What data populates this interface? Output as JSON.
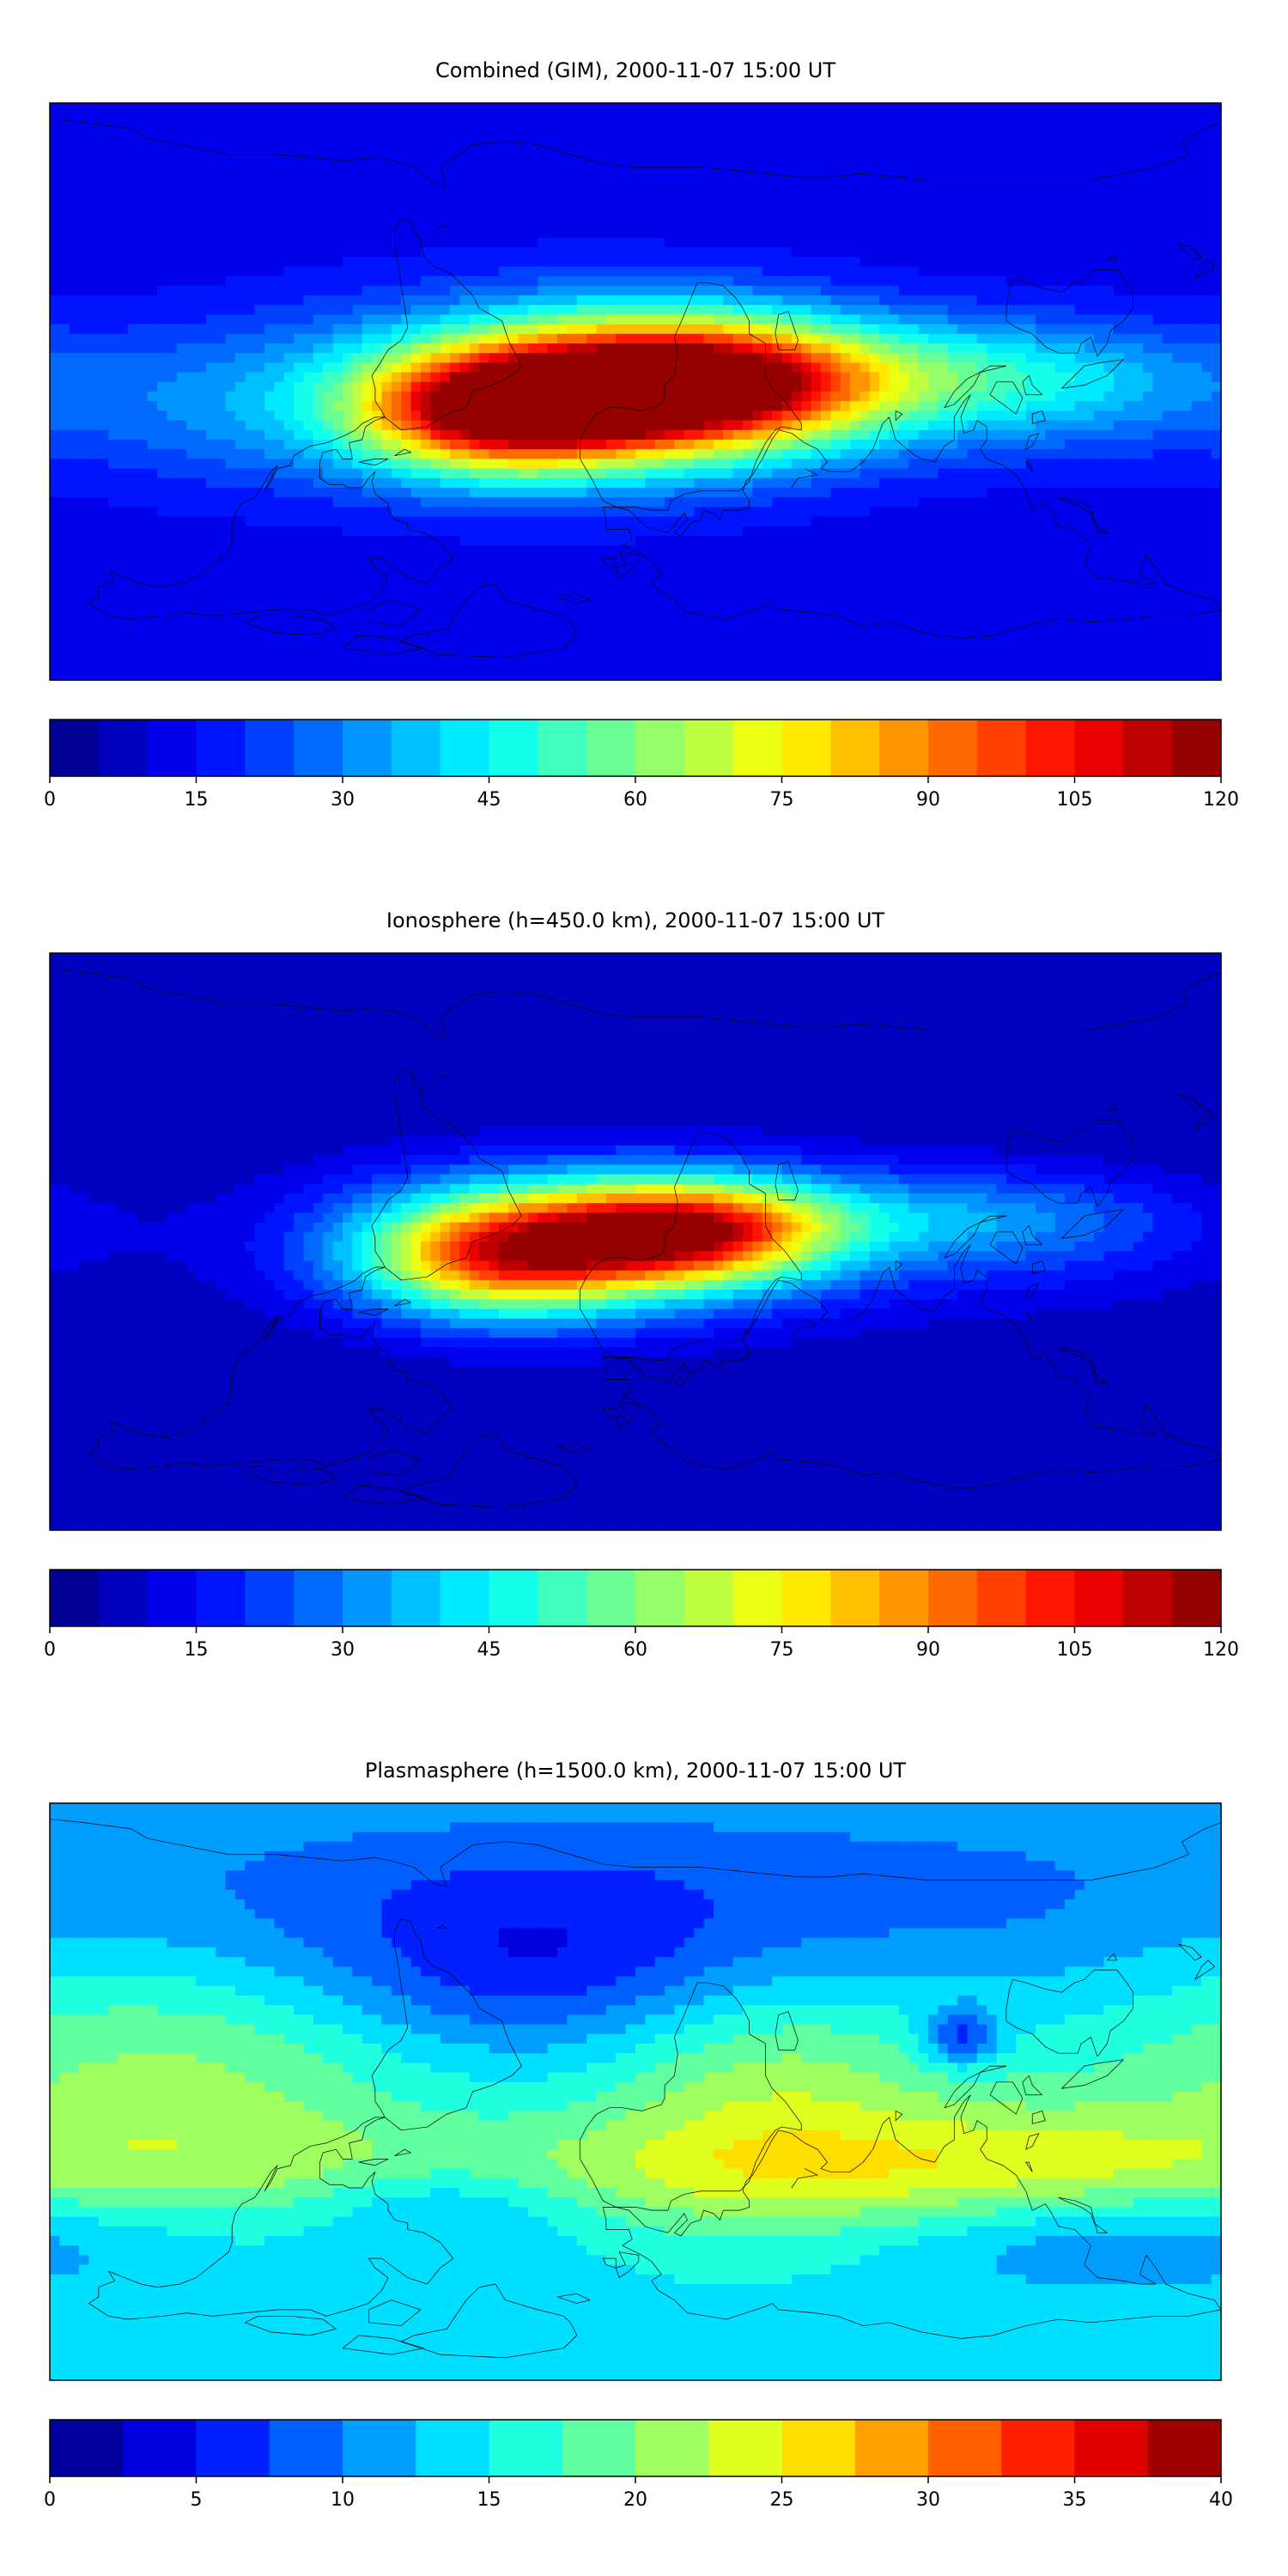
{
  "figure": {
    "panels": [
      {
        "title": "Combined (GIM), 2000-11-07 15:00 UT",
        "colorbar": {
          "min": 0,
          "max": 120,
          "levels": 24,
          "tick_labels": [
            "0",
            "15",
            "30",
            "45",
            "60",
            "75",
            "90",
            "105",
            "120"
          ]
        }
      },
      {
        "title": "Ionosphere  (h=450.0 km), 2000-11-07 15:00 UT",
        "colorbar": {
          "min": 0,
          "max": 120,
          "levels": 24,
          "tick_labels": [
            "0",
            "15",
            "30",
            "45",
            "60",
            "75",
            "90",
            "105",
            "120"
          ]
        }
      },
      {
        "title": "Plasmasphere (h=1500.0 km), 2000-11-07 15:00 UT",
        "colorbar": {
          "min": 0,
          "max": 40,
          "levels": 16,
          "tick_labels": [
            "0",
            "5",
            "10",
            "15",
            "20",
            "25",
            "30",
            "35",
            "40"
          ]
        }
      }
    ]
  },
  "chart_data": [
    {
      "type": "heatmap",
      "title": "Combined (GIM), 2000-11-07 15:00 UT",
      "map": "world coastlines, equirectangular, longitude -180 to 180, latitude -90 to 90",
      "xlim": [
        -180,
        180
      ],
      "ylim": [
        -90,
        90
      ],
      "colormap": "jet",
      "color_range": [
        0,
        120
      ],
      "color_step": 5,
      "background_level": 12,
      "features": [
        {
          "lon": 15,
          "lat": 2,
          "lon_width": 38,
          "lat_width": 14,
          "value": 95
        },
        {
          "lon": -42,
          "lat": -6,
          "lon_width": 30,
          "lat_width": 13,
          "value": 78
        },
        {
          "lon": -20,
          "lat": 0,
          "lon_width": 60,
          "lat_width": 20,
          "value": 40
        },
        {
          "lon": 85,
          "lat": 5,
          "lon_width": 55,
          "lat_width": 12,
          "value": 25
        },
        {
          "lon": 130,
          "lat": 0,
          "lon_width": 40,
          "lat_width": 15,
          "value": 14
        },
        {
          "lon": -130,
          "lat": -5,
          "lon_width": 40,
          "lat_width": 18,
          "value": 12
        }
      ]
    },
    {
      "type": "heatmap",
      "title": "Ionosphere  (h=450.0 km), 2000-11-07 15:00 UT",
      "map": "world coastlines, equirectangular, longitude -180 to 180, latitude -90 to 90",
      "xlim": [
        -180,
        180
      ],
      "ylim": [
        -90,
        90
      ],
      "colormap": "jet",
      "color_range": [
        0,
        120
      ],
      "color_step": 5,
      "background_level": 5,
      "features": [
        {
          "lon": 15,
          "lat": 3,
          "lon_width": 30,
          "lat_width": 11,
          "value": 82
        },
        {
          "lon": -40,
          "lat": -4,
          "lon_width": 30,
          "lat_width": 13,
          "value": 74
        },
        {
          "lon": -10,
          "lat": 0,
          "lon_width": 65,
          "lat_width": 18,
          "value": 30
        },
        {
          "lon": 90,
          "lat": 8,
          "lon_width": 50,
          "lat_width": 10,
          "value": 18
        },
        {
          "lon": 130,
          "lat": 0,
          "lon_width": 40,
          "lat_width": 15,
          "value": 10
        }
      ]
    },
    {
      "type": "heatmap",
      "title": "Plasmasphere (h=1500.0 km), 2000-11-07 15:00 UT",
      "map": "world coastlines, equirectangular, longitude -180 to 180, latitude -90 to 90",
      "xlim": [
        -180,
        180
      ],
      "ylim": [
        -90,
        90
      ],
      "colormap": "jet",
      "color_range": [
        0,
        40
      ],
      "color_step": 2.5,
      "background_level": 14,
      "features": [
        {
          "lon": 0,
          "lat": 60,
          "lon_width": 180,
          "lat_width": 25,
          "value": -6
        },
        {
          "lon": -30,
          "lat": 35,
          "lon_width": 50,
          "lat_width": 20,
          "value": -6
        },
        {
          "lon": 100,
          "lat": 17,
          "lon_width": 8,
          "lat_width": 6,
          "value": -9
        },
        {
          "lon": 40,
          "lat": 0,
          "lon_width": 40,
          "lat_width": 30,
          "value": 8
        },
        {
          "lon": -140,
          "lat": 5,
          "lon_width": 60,
          "lat_width": 30,
          "value": 7
        },
        {
          "lon": 120,
          "lat": -22,
          "lon_width": 45,
          "lat_width": 15,
          "value": 5
        },
        {
          "lon": -60,
          "lat": -35,
          "lon_width": 30,
          "lat_width": 10,
          "value": -5
        },
        {
          "lon": 150,
          "lat": -45,
          "lon_width": 50,
          "lat_width": 12,
          "value": -5
        },
        {
          "lon": 0,
          "lat": -25,
          "lon_width": 180,
          "lat_width": 12,
          "value": 5
        }
      ]
    }
  ]
}
